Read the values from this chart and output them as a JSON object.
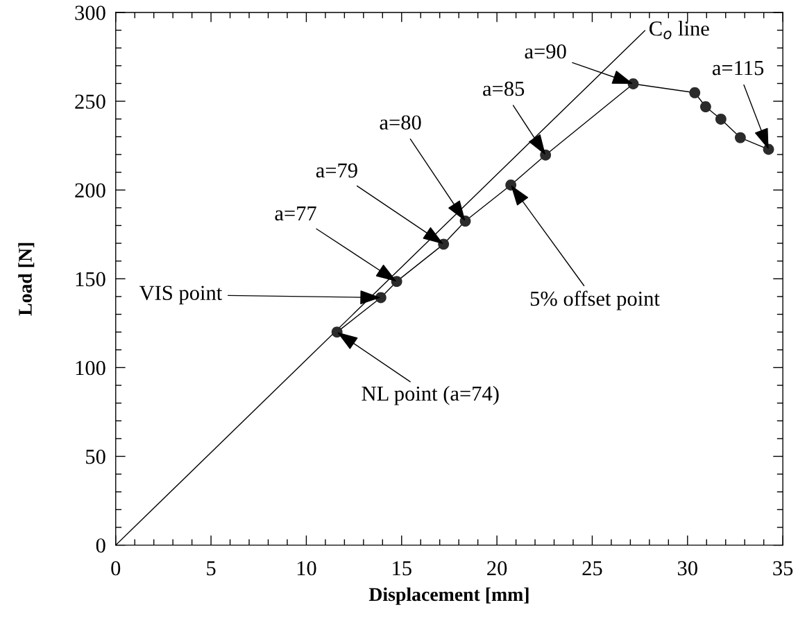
{
  "chart_data": {
    "type": "line",
    "xlabel": "Displacement [mm]",
    "ylabel": "Load [N]",
    "xlim": [
      0,
      35
    ],
    "ylim": [
      0,
      300
    ],
    "xticks": [
      0,
      5,
      10,
      15,
      20,
      25,
      30,
      35
    ],
    "yticks": [
      0,
      50,
      100,
      150,
      200,
      250,
      300
    ],
    "series": [
      {
        "x": [
          11.61,
          13.91,
          14.74,
          17.2,
          18.34,
          20.73,
          22.55,
          27.15,
          30.38,
          30.95,
          31.75,
          32.77,
          34.25
        ],
        "values": [
          120,
          139.4,
          148.5,
          169.5,
          182.5,
          202.8,
          219.7,
          259.8,
          254.8,
          246.9,
          239.9,
          229.5,
          222.9
        ],
        "color": "#2b2b2b",
        "marker": "circle"
      },
      {
        "name": "C$_{o}$ line",
        "x": [
          0,
          27.76
        ],
        "values": [
          0,
          289.8
        ],
        "color": "#000000",
        "marker": "none"
      }
    ],
    "annotations": [
      {
        "text": "NL point (a=74)",
        "x": 11.61,
        "y": 120
      },
      {
        "text": "VIS point",
        "x": 13.91,
        "y": 139.4
      },
      {
        "text": "a=77",
        "x": 14.74,
        "y": 148.5
      },
      {
        "text": "a=79",
        "x": 17.2,
        "y": 169.5
      },
      {
        "text": "a=80",
        "x": 18.34,
        "y": 182.5
      },
      {
        "text": "5% offset point",
        "x": 20.73,
        "y": 202.8
      },
      {
        "text": "a=85",
        "x": 22.55,
        "y": 219.7
      },
      {
        "text": "a=90",
        "x": 27.15,
        "y": 259.8
      },
      {
        "text": "a=115",
        "x": 34.25,
        "y": 222.9
      }
    ]
  }
}
